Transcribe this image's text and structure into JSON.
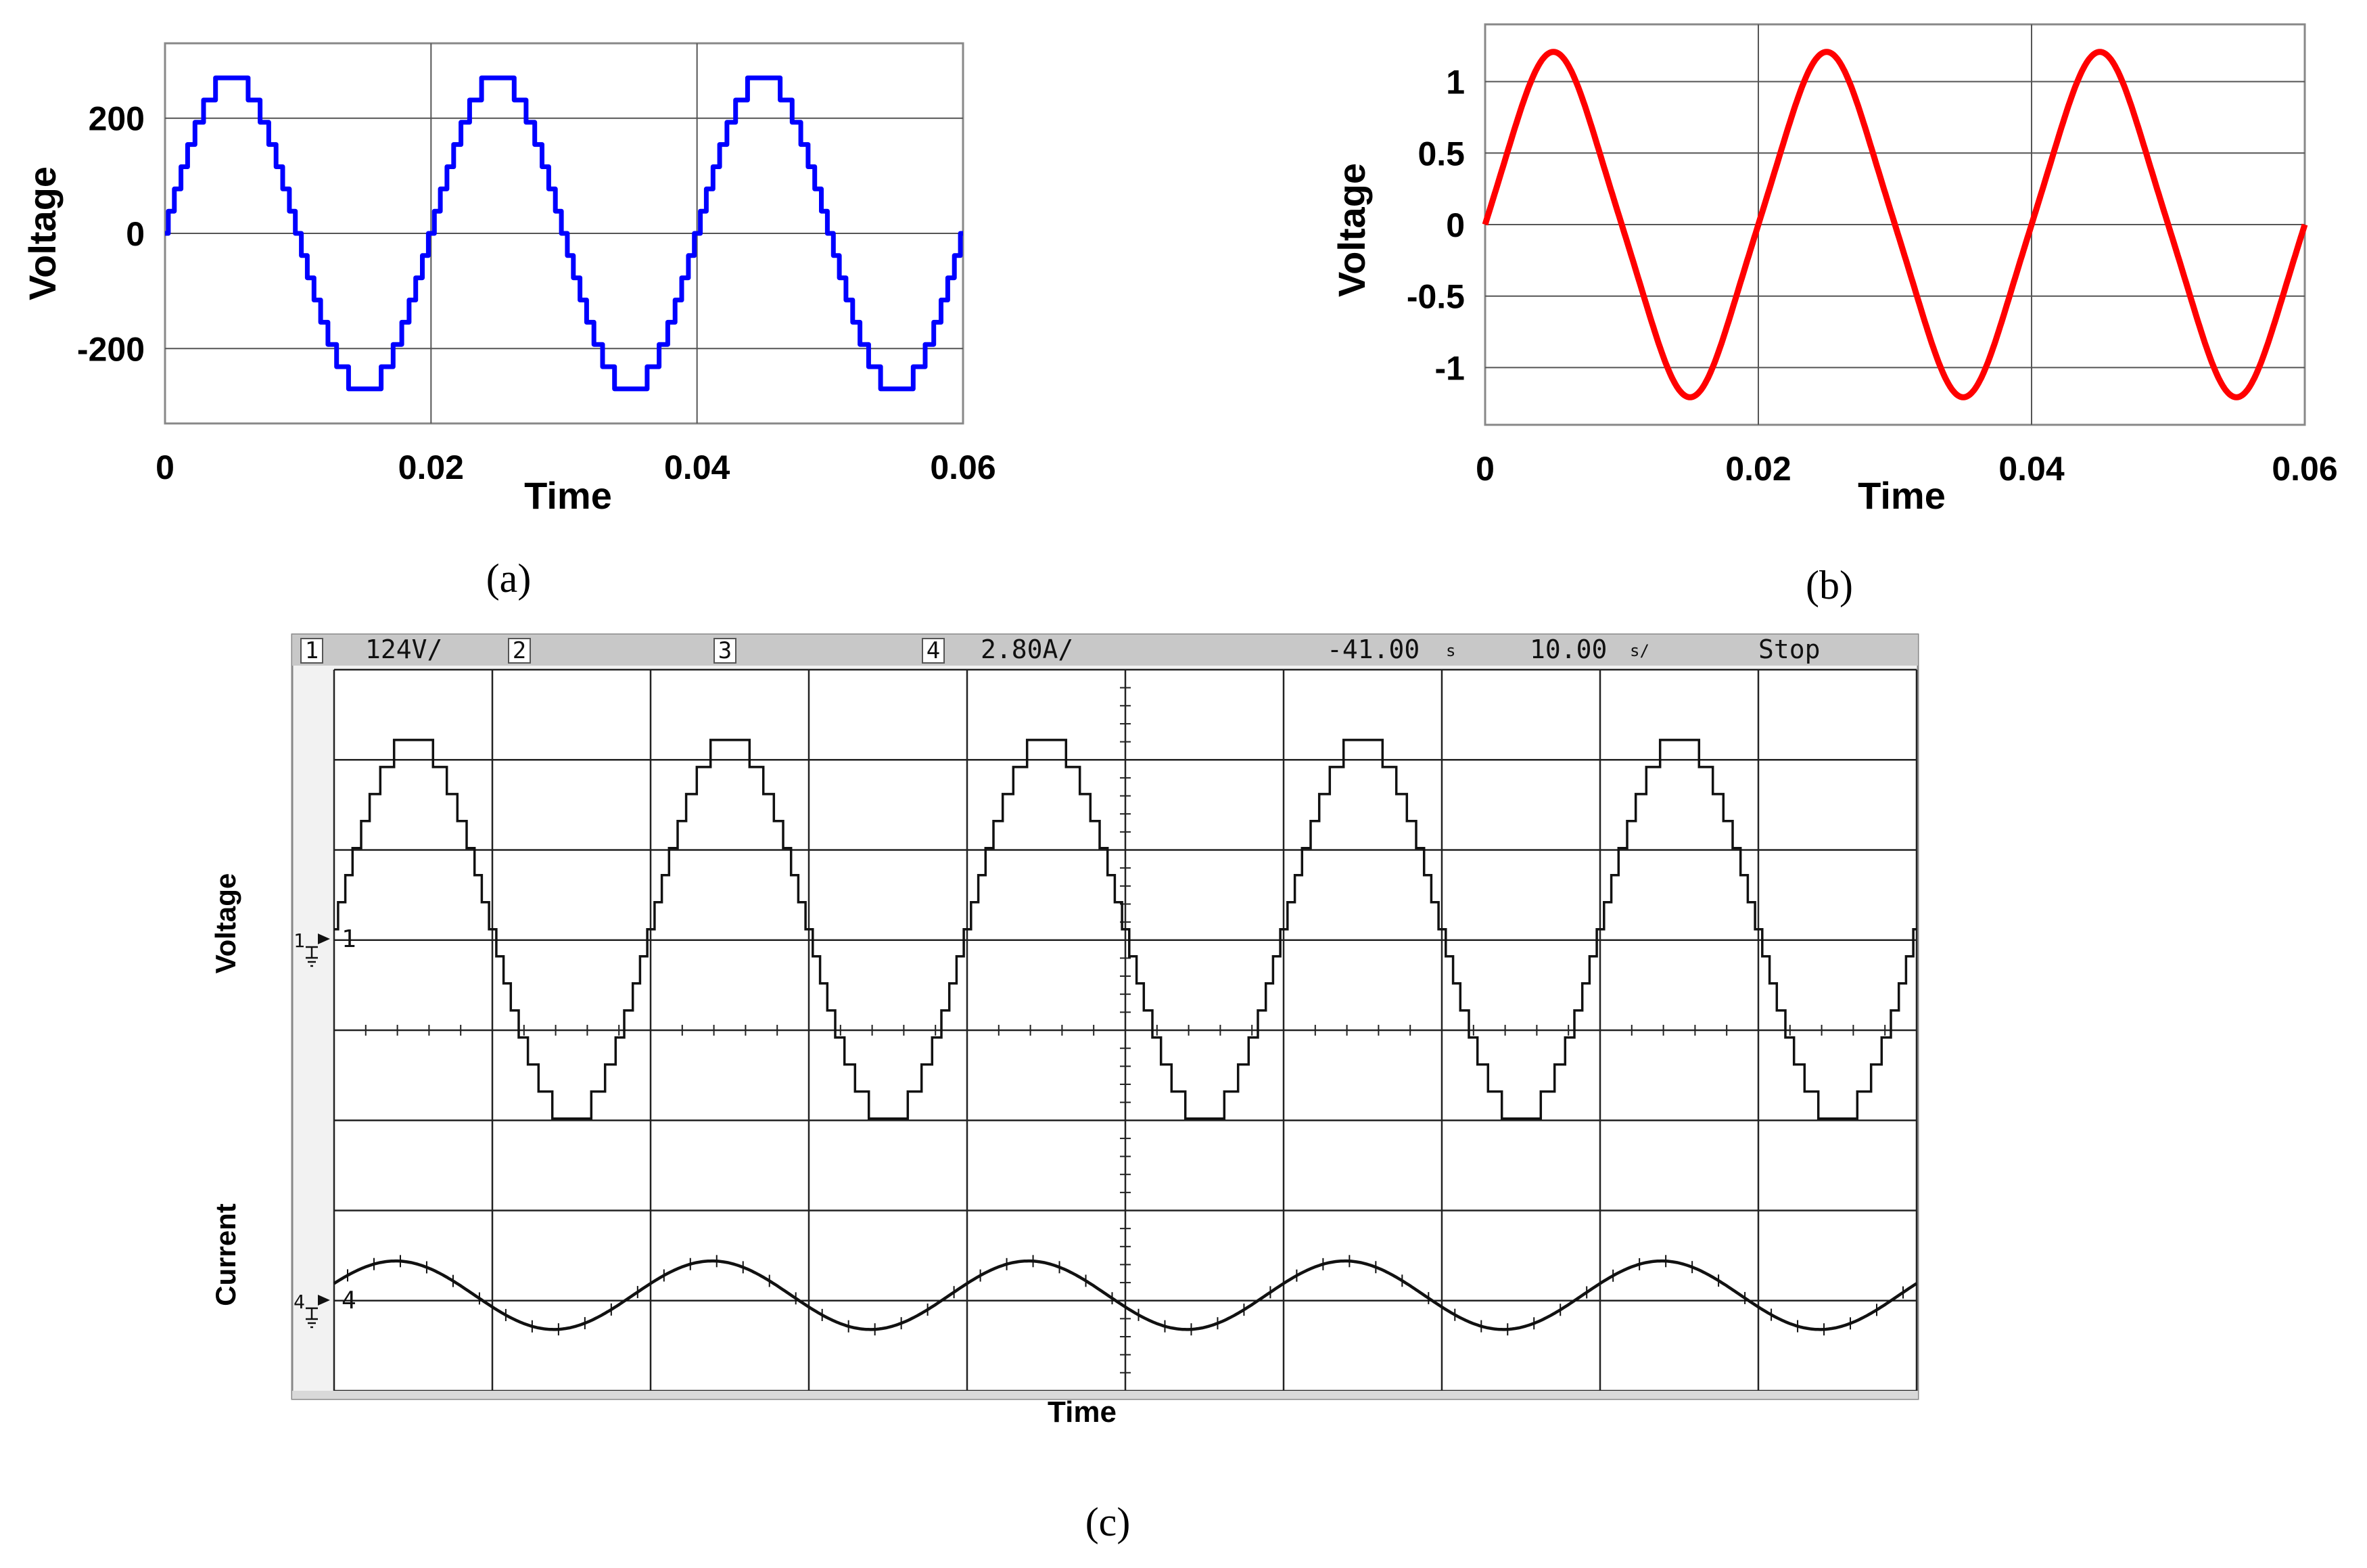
{
  "chart_data": [
    {
      "id": "a",
      "type": "line",
      "caption": "(a)",
      "xlabel": "Time",
      "ylabel": "Voltage",
      "xlim": [
        0,
        0.06
      ],
      "ylim": [
        -330,
        330
      ],
      "xticks": [
        0,
        0.02,
        0.04,
        0.06
      ],
      "xtick_labels": [
        "0",
        "0.02",
        "0.04",
        "0.06"
      ],
      "yticks": [
        -200,
        0,
        200
      ],
      "ytick_labels": [
        "-200",
        "0",
        "200"
      ],
      "grid": true,
      "series": [
        {
          "name": "Voltage",
          "color": "#0000ff",
          "amplitude": 270,
          "frequency_hz": 50,
          "levels": 15,
          "waveform": "staircase sine"
        }
      ]
    },
    {
      "id": "b",
      "type": "line",
      "caption": "(b)",
      "xlabel": "Time",
      "ylabel": "Voltage",
      "xlim": [
        0,
        0.06
      ],
      "ylim": [
        -1.4,
        1.4
      ],
      "xticks": [
        0,
        0.02,
        0.04,
        0.06
      ],
      "xtick_labels": [
        "0",
        "0.02",
        "0.04",
        "0.06"
      ],
      "yticks": [
        -1,
        -0.5,
        0,
        0.5,
        1
      ],
      "ytick_labels": [
        "-1",
        "-0.5",
        "0",
        "0.5",
        "1"
      ],
      "grid": true,
      "series": [
        {
          "name": "Voltage",
          "color": "#ff0000",
          "amplitude": 1.15,
          "frequency_hz": 50,
          "waveform": "sine"
        }
      ]
    },
    {
      "id": "c",
      "type": "line",
      "caption": "(c)",
      "xlabel": "Time",
      "ylabels": [
        "Voltage",
        "Current"
      ],
      "grid": true,
      "divisions": {
        "x": 10,
        "y": 8
      },
      "header": {
        "ch1_num": "1",
        "ch1_scale": "124V/",
        "ch2_num": "2",
        "ch3_num": "3",
        "ch4_num": "4",
        "ch4_scale": "2.80A/",
        "trigger_pos": "-41.00",
        "time_scale": "10.00",
        "status": "Stop"
      },
      "markers": {
        "ch1": "1",
        "ch4": "4"
      },
      "series": [
        {
          "name": "Voltage",
          "color": "#000000",
          "amplitude_div": 2.1,
          "periods": 5,
          "levels": 15,
          "waveform": "staircase sine"
        },
        {
          "name": "Current",
          "color": "#000000",
          "amplitude_div": 0.38,
          "periods": 5,
          "waveform": "sine"
        }
      ]
    }
  ]
}
